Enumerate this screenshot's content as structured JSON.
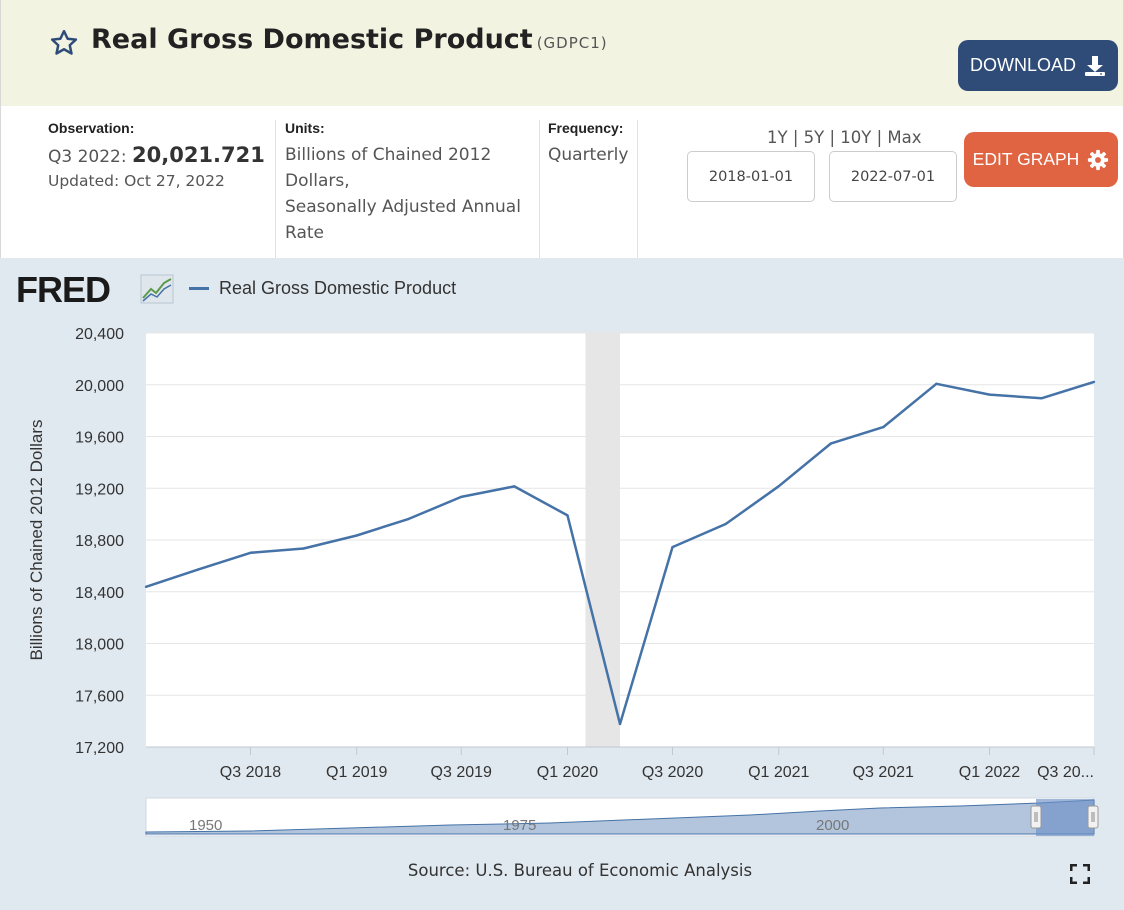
{
  "header": {
    "title": "Real Gross Domestic Product",
    "series_id": "(GDPC1)",
    "download_label": "DOWNLOAD"
  },
  "meta": {
    "observation_label": "Observation:",
    "observation_period": "Q3 2022:",
    "observation_value": "20,021.721",
    "updated": "Updated: Oct 27, 2022",
    "units_label": "Units:",
    "units_lines": [
      "Billions of Chained 2012",
      "Dollars,",
      "Seasonally Adjusted Annual",
      "Rate"
    ],
    "frequency_label": "Frequency:",
    "frequency_value": "Quarterly",
    "range_links": [
      "1Y",
      "5Y",
      "10Y",
      "Max"
    ],
    "start_date": "2018-01-01",
    "end_date": "2022-07-01",
    "edit_label": "EDIT GRAPH"
  },
  "chart_data": {
    "type": "line",
    "logo": "FRED",
    "title": "",
    "xlabel": "",
    "ylabel": "Billions of Chained 2012 Dollars",
    "ylim": [
      17200,
      20400
    ],
    "yticks": [
      "20,400",
      "20,000",
      "19,600",
      "19,200",
      "18,800",
      "18,400",
      "18,000",
      "17,600",
      "17,200"
    ],
    "xticks": [
      "Q3 2018",
      "Q1 2019",
      "Q3 2019",
      "Q1 2020",
      "Q3 2020",
      "Q1 2021",
      "Q3 2021",
      "Q1 2022",
      "Q3 20..."
    ],
    "x": [
      "2018-01-01",
      "2018-04-01",
      "2018-07-01",
      "2018-10-01",
      "2019-01-01",
      "2019-04-01",
      "2019-07-01",
      "2019-10-01",
      "2020-01-01",
      "2020-04-01",
      "2020-07-01",
      "2020-10-01",
      "2021-01-01",
      "2021-04-01",
      "2021-07-01",
      "2021-10-01",
      "2022-01-01",
      "2022-04-01",
      "2022-07-01"
    ],
    "series": [
      {
        "name": "Real Gross Domestic Product",
        "color": "#4572a7",
        "values": [
          18438,
          18571,
          18701,
          18734,
          18835,
          18963,
          19133,
          19214,
          18990,
          17378,
          18745,
          18924,
          19216,
          19545,
          19673,
          20007,
          19924,
          19895,
          20022
        ]
      }
    ],
    "recession_shading": [
      "2020-01-01",
      "2020-04-01"
    ],
    "grid": true,
    "legend": "top-left",
    "navigator_labels": [
      "1950",
      "1975",
      "2000"
    ]
  },
  "source": "Source: U.S. Bureau of Economic Analysis",
  "colors": {
    "header_bg": "#f3f3e2",
    "download_bg": "#2f4c79",
    "edit_bg": "#e06441",
    "chart_bg": "#e1e9f0",
    "line": "#4572a7"
  }
}
